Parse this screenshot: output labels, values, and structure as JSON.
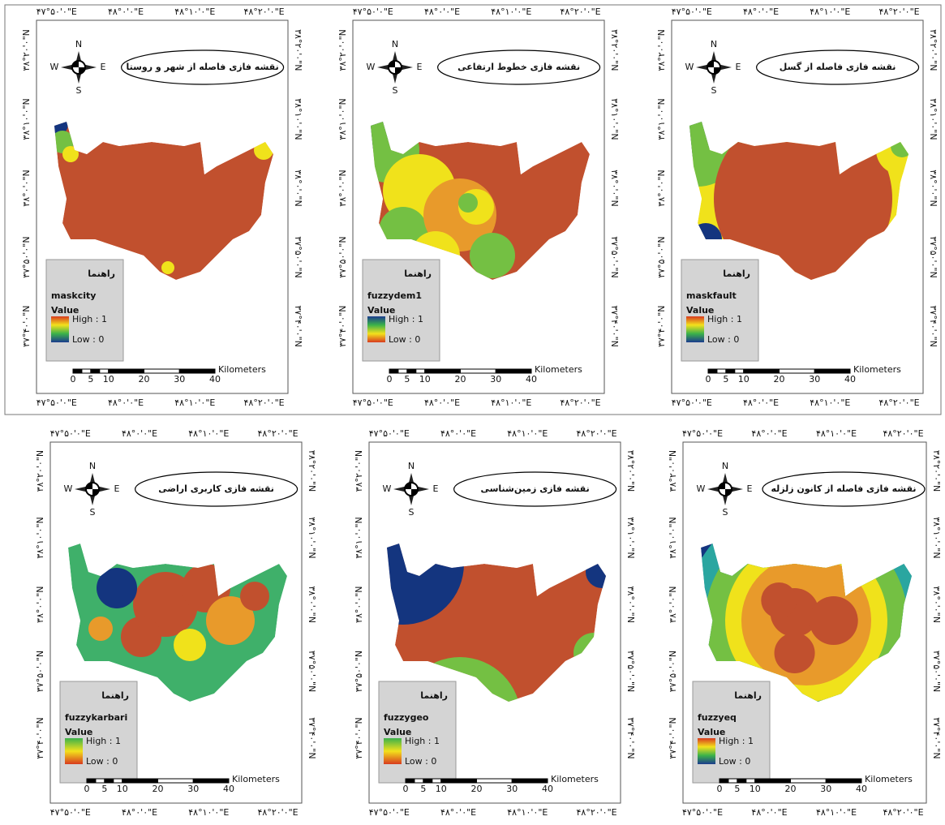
{
  "common": {
    "compass": {
      "n": "N",
      "s": "S",
      "e": "E",
      "w": "W"
    },
    "legend_heading": "راهنما",
    "value_label": "Value",
    "high": "High : 1",
    "low": "Low : 0",
    "scale_unit": "Kilometers",
    "scale_ticks": [
      0,
      5,
      10,
      20,
      30,
      40
    ],
    "longitudes": [
      "۴۷°۵۰'۰\"E",
      "۴۸°۰'۰\"E",
      "۴۸°۱۰'۰\"E",
      "۴۸°۲۰'۰\"E"
    ],
    "latitudes": [
      "۳۸°۲۰'۰\"N",
      "۳۸°۱۰'۰\"N",
      "۳۸°۰'۰\"N",
      "۳۷°۵۰'۰\"N",
      "۳۷°۴۰'۰\"N"
    ]
  },
  "panels": [
    {
      "title": "نقشه فازی فاصله از شهر و روستا",
      "layer": "maskcity"
    },
    {
      "title": "نقشه فازی خطوط ارتفاعی",
      "layer": "fuzzydem1"
    },
    {
      "title": "نقشه فازی فاصله از گسل",
      "layer": "maskfault"
    },
    {
      "title": "نقشه فازی کاربری اراضی",
      "layer": "fuzzykarbari"
    },
    {
      "title": "نقشه فازی زمین‌شناسی",
      "layer": "fuzzygeo"
    },
    {
      "title": "نقشه فازی فاصله از کانون زلزله",
      "layer": "fuzzyeq"
    }
  ]
}
